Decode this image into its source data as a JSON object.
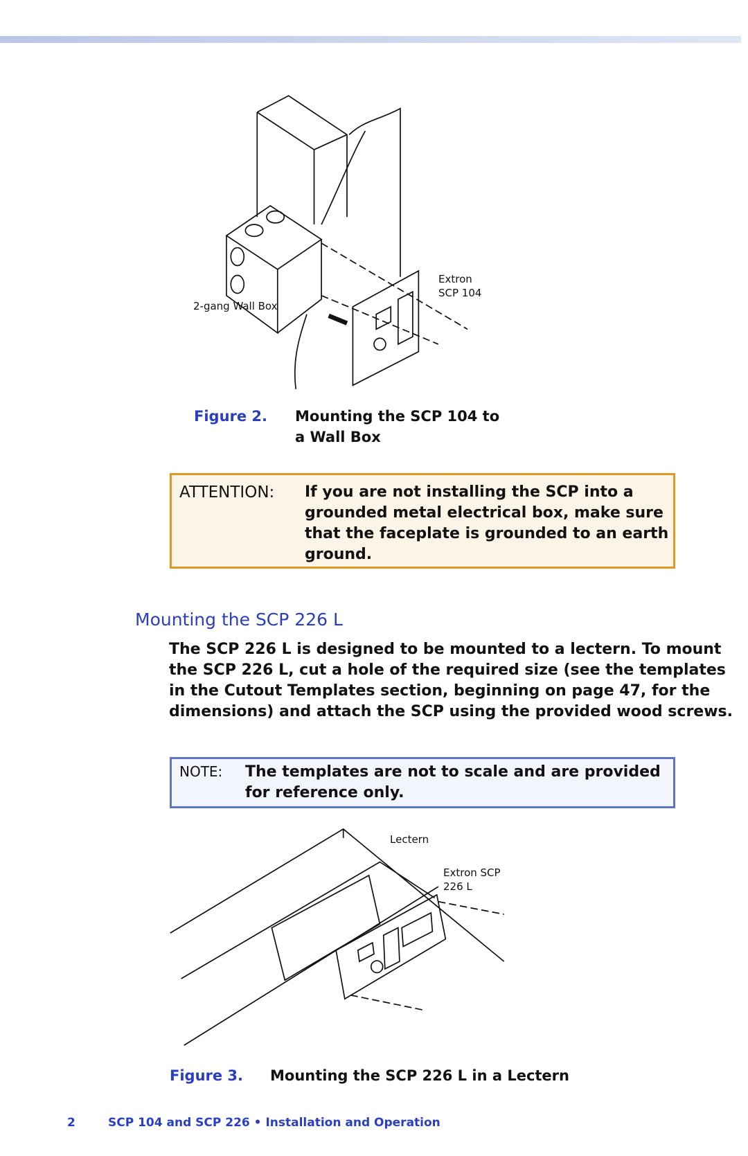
{
  "figure_1": {
    "labels": [
      "2-gang Wall Box",
      "Extron SCP 104"
    ],
    "number": "Figure 2.",
    "caption": "Mounting the SCP 104 to a Wall Box"
  },
  "attention": {
    "label": "ATTENTION:",
    "text": "If you are not installing the SCP into a grounded metal electrical box, make sure that the faceplate is grounded to an earth ground."
  },
  "section": {
    "heading": "Mounting the SCP 226 L",
    "body": "The SCP 226 L is designed to be mounted to a lectern. To mount the SCP 226 L, cut a hole of the required size (see the templates in the Cutout Templates section, beginning on page 47, for the dimensions) and attach the SCP using the provided wood screws."
  },
  "note": {
    "label": "NOTE:",
    "text": "The templates are not to scale and are provided for reference only."
  },
  "figure_2": {
    "labels": [
      "Lectern",
      "Extron SCP 226 L"
    ],
    "number": "Figure 3.",
    "caption": "Mounting the SCP 226 L in a Lectern"
  },
  "footer": {
    "page": "2",
    "title": "SCP 104 and SCP 226 • Installation and Operation"
  }
}
